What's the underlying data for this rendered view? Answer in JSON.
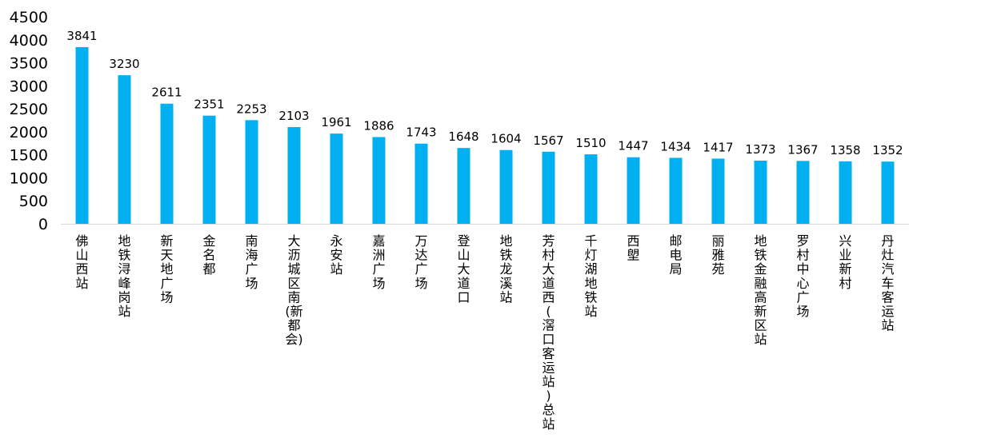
{
  "chart_data": {
    "type": "bar",
    "categories": [
      "佛山西站",
      "地铁浔峰岗站",
      "新天地广场",
      "金名都",
      "南海广场",
      "大沥城区南(新都会)",
      "永安站",
      "嘉洲广场",
      "万达广场",
      "登山大道口",
      "地铁龙溪站",
      "芳村大道西(滘口客运站)总站",
      "千灯湖地铁站",
      "西塱",
      "邮电局",
      "丽雅苑",
      "地铁金融高新区站",
      "罗村中心广场",
      "兴业新村",
      "丹灶汽车客运站"
    ],
    "category_lines": [
      [
        "佛",
        "山",
        "西",
        "站"
      ],
      [
        "地",
        "铁",
        "浔",
        "峰",
        "岗",
        "站"
      ],
      [
        "新",
        "天",
        "地",
        "广",
        "场"
      ],
      [
        "金",
        "名",
        "都"
      ],
      [
        "南",
        "海",
        "广",
        "场"
      ],
      [
        "大",
        "沥",
        "城",
        "区",
        "南",
        "(新",
        "都",
        "会)"
      ],
      [
        "永",
        "安",
        "站"
      ],
      [
        "嘉",
        "洲",
        "广",
        "场"
      ],
      [
        "万",
        "达",
        "广",
        "场"
      ],
      [
        "登",
        "山",
        "大",
        "道",
        "口"
      ],
      [
        "地",
        "铁",
        "龙",
        "溪",
        "站"
      ],
      [
        "芳",
        "村",
        "大",
        "道",
        "西",
        "(",
        "滘",
        "口",
        "客",
        "运",
        "站",
        ")",
        "总",
        "站"
      ],
      [
        "千",
        "灯",
        "湖",
        "地",
        "铁",
        "站"
      ],
      [
        "西",
        "塱"
      ],
      [
        "邮",
        "电",
        "局"
      ],
      [
        "丽",
        "雅",
        "苑"
      ],
      [
        "地",
        "铁",
        "金",
        "融",
        "高",
        "新",
        "区",
        "站"
      ],
      [
        "罗",
        "村",
        "中",
        "心",
        "广",
        "场"
      ],
      [
        "兴",
        "业",
        "新",
        "村"
      ],
      [
        "丹",
        "灶",
        "汽",
        "车",
        "客",
        "运",
        "站"
      ]
    ],
    "values": [
      3841,
      3230,
      2611,
      2351,
      2253,
      2103,
      1961,
      1886,
      1743,
      1648,
      1604,
      1567,
      1510,
      1447,
      1434,
      1417,
      1373,
      1367,
      1358,
      1352
    ],
    "y_ticks": [
      "0",
      "500",
      "1000",
      "1500",
      "2000",
      "2500",
      "3000",
      "3500",
      "4000",
      "4500"
    ],
    "ylim": [
      0,
      4500
    ],
    "grid": false,
    "colors": {
      "bar": "#00b0f0",
      "axis": "#d9d9d9"
    }
  }
}
